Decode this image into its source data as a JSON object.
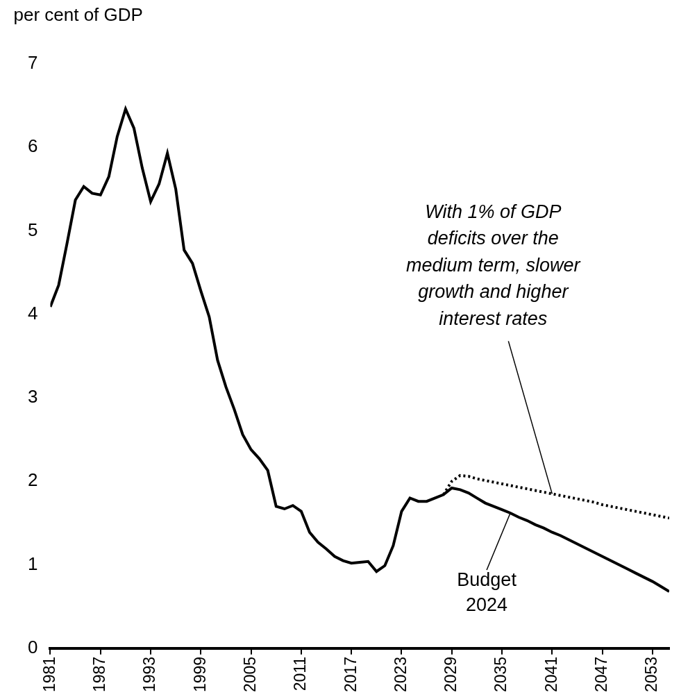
{
  "chart_data": {
    "type": "line",
    "y_label": "per cent of GDP",
    "x": [
      1981,
      1982,
      1983,
      1984,
      1985,
      1986,
      1987,
      1988,
      1989,
      1990,
      1991,
      1992,
      1993,
      1994,
      1995,
      1996,
      1997,
      1998,
      1999,
      2000,
      2001,
      2002,
      2003,
      2004,
      2005,
      2006,
      2007,
      2008,
      2009,
      2010,
      2011,
      2012,
      2013,
      2014,
      2015,
      2016,
      2017,
      2018,
      2019,
      2020,
      2021,
      2022,
      2023,
      2024,
      2025,
      2026,
      2027,
      2028,
      2029,
      2030,
      2031,
      2032,
      2033,
      2034,
      2035,
      2036,
      2037,
      2038,
      2039,
      2040,
      2041,
      2042,
      2043,
      2044,
      2045,
      2046,
      2047,
      2048,
      2049,
      2050,
      2051,
      2052,
      2053,
      2054,
      2055
    ],
    "series": [
      {
        "color": "#000000",
        "line_style": "solid",
        "values": [
          4.09,
          4.35,
          4.85,
          5.37,
          5.53,
          5.45,
          5.43,
          5.65,
          6.13,
          6.46,
          6.23,
          5.75,
          5.35,
          5.56,
          5.93,
          5.5,
          4.77,
          4.61,
          4.28,
          3.97,
          3.45,
          3.13,
          2.86,
          2.56,
          2.38,
          2.27,
          2.13,
          1.7,
          1.67,
          1.71,
          1.64,
          1.39,
          1.27,
          1.19,
          1.1,
          1.05,
          1.02,
          1.03,
          1.04,
          0.92,
          0.99,
          1.23,
          1.64,
          1.8,
          1.76,
          1.76,
          1.8,
          1.84,
          1.92,
          1.9,
          1.86,
          1.8,
          1.74,
          1.7,
          1.66,
          1.62,
          1.57,
          1.53,
          1.48,
          1.44,
          1.39,
          1.35,
          1.3,
          1.25,
          1.2,
          1.15,
          1.1,
          1.05,
          1.0,
          0.95,
          0.9,
          0.85,
          0.8,
          0.74,
          0.68
        ]
      },
      {
        "color": "#000000",
        "line_style": "dotted",
        "values": [
          null,
          null,
          null,
          null,
          null,
          null,
          null,
          null,
          null,
          null,
          null,
          null,
          null,
          null,
          null,
          null,
          null,
          null,
          null,
          null,
          null,
          null,
          null,
          null,
          null,
          null,
          null,
          null,
          null,
          null,
          null,
          null,
          null,
          null,
          null,
          null,
          null,
          null,
          null,
          null,
          null,
          null,
          null,
          null,
          null,
          null,
          null,
          1.84,
          2.0,
          2.07,
          2.06,
          2.03,
          2.01,
          1.99,
          1.97,
          1.95,
          1.93,
          1.91,
          1.89,
          1.87,
          1.85,
          1.83,
          1.81,
          1.79,
          1.77,
          1.75,
          1.72,
          1.7,
          1.68,
          1.66,
          1.64,
          1.62,
          1.6,
          1.58,
          1.56
        ]
      }
    ],
    "annotations": [
      {
        "text": [
          "Budget",
          "2024"
        ],
        "x": 2036,
        "y": 1.62
      },
      {
        "text": [
          "With 1% of GDP",
          "deficits over the",
          "medium term, slower",
          "growth and higher",
          "interest rates"
        ],
        "x": 2041,
        "y": 1.85
      }
    ],
    "xlim": [
      1981,
      2055
    ],
    "xticks": [
      1981,
      1987,
      1993,
      1999,
      2005,
      2011,
      2017,
      2023,
      2029,
      2035,
      2041,
      2047,
      2053
    ],
    "ylim": [
      0,
      7
    ],
    "yticks": [
      0,
      1,
      2,
      3,
      4,
      5,
      6,
      7
    ],
    "grid": false
  }
}
